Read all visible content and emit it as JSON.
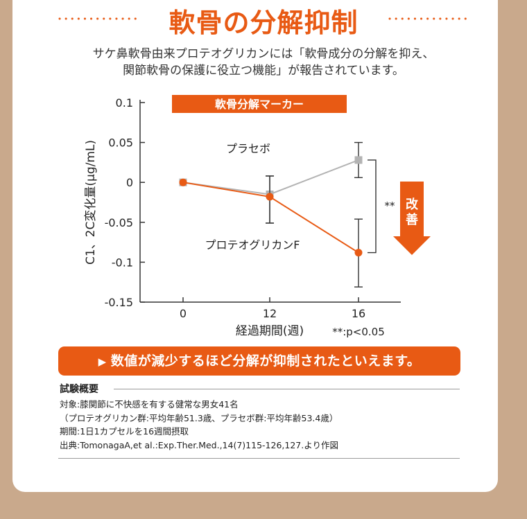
{
  "title": "軟骨の分解抑制",
  "intro": {
    "line1": "サケ鼻軟骨由来プロテオグリカンには「軟骨成分の分解を抑え、",
    "line2": "関節軟骨の保護に役立つ機能」が報告されています。"
  },
  "colors": {
    "accent": "#e85a14",
    "placebo": "#b3b3b3",
    "axis": "#333333",
    "frame": "#c9a98c"
  },
  "chart_data": {
    "type": "line",
    "title": "軟骨分解マーカー",
    "ylabel": "C1、2C変化量(μg/mL)",
    "xlabel": "経過期間(週)",
    "categories": [
      "0",
      "12",
      "16"
    ],
    "ylim": [
      -0.15,
      0.1
    ],
    "yticks": [
      "0.1",
      "0.05",
      "0",
      "-0.05",
      "-0.1",
      "-0.15"
    ],
    "grid": false,
    "series": [
      {
        "name": "プラセボ",
        "color": "#b3b3b3",
        "marker": "square",
        "values": [
          0.0,
          -0.015,
          0.028
        ],
        "error": [
          [
            0,
            0
          ],
          [
            -0.051,
            0.008
          ],
          [
            0.006,
            0.05
          ]
        ]
      },
      {
        "name": "プロテオグリカンF",
        "color": "#e85a14",
        "marker": "circle",
        "values": [
          0.0,
          -0.018,
          -0.088
        ],
        "error": [
          [
            0,
            0
          ],
          [
            -0.051,
            0.008
          ],
          [
            -0.131,
            -0.046
          ]
        ]
      }
    ],
    "significance": "**",
    "significance_note": "**:p<0.05",
    "arrow_label": "改善"
  },
  "banner": {
    "icon": "play-triangle-icon",
    "text": "数値が減少するほど分解が抑制されたといえます。"
  },
  "trial": {
    "heading": "試験概要",
    "lines": [
      "対象:膝関節に不快感を有する健常な男女41名",
      "（プロテオグリカン群:平均年齢51.3歳、プラセボ群:平均年齢53.4歳）",
      "期間:1日1カプセルを16週間摂取",
      "出典:TomonagaA,et al.:Exp.Ther.Med.,14(7)115-126,127.より作図"
    ]
  }
}
